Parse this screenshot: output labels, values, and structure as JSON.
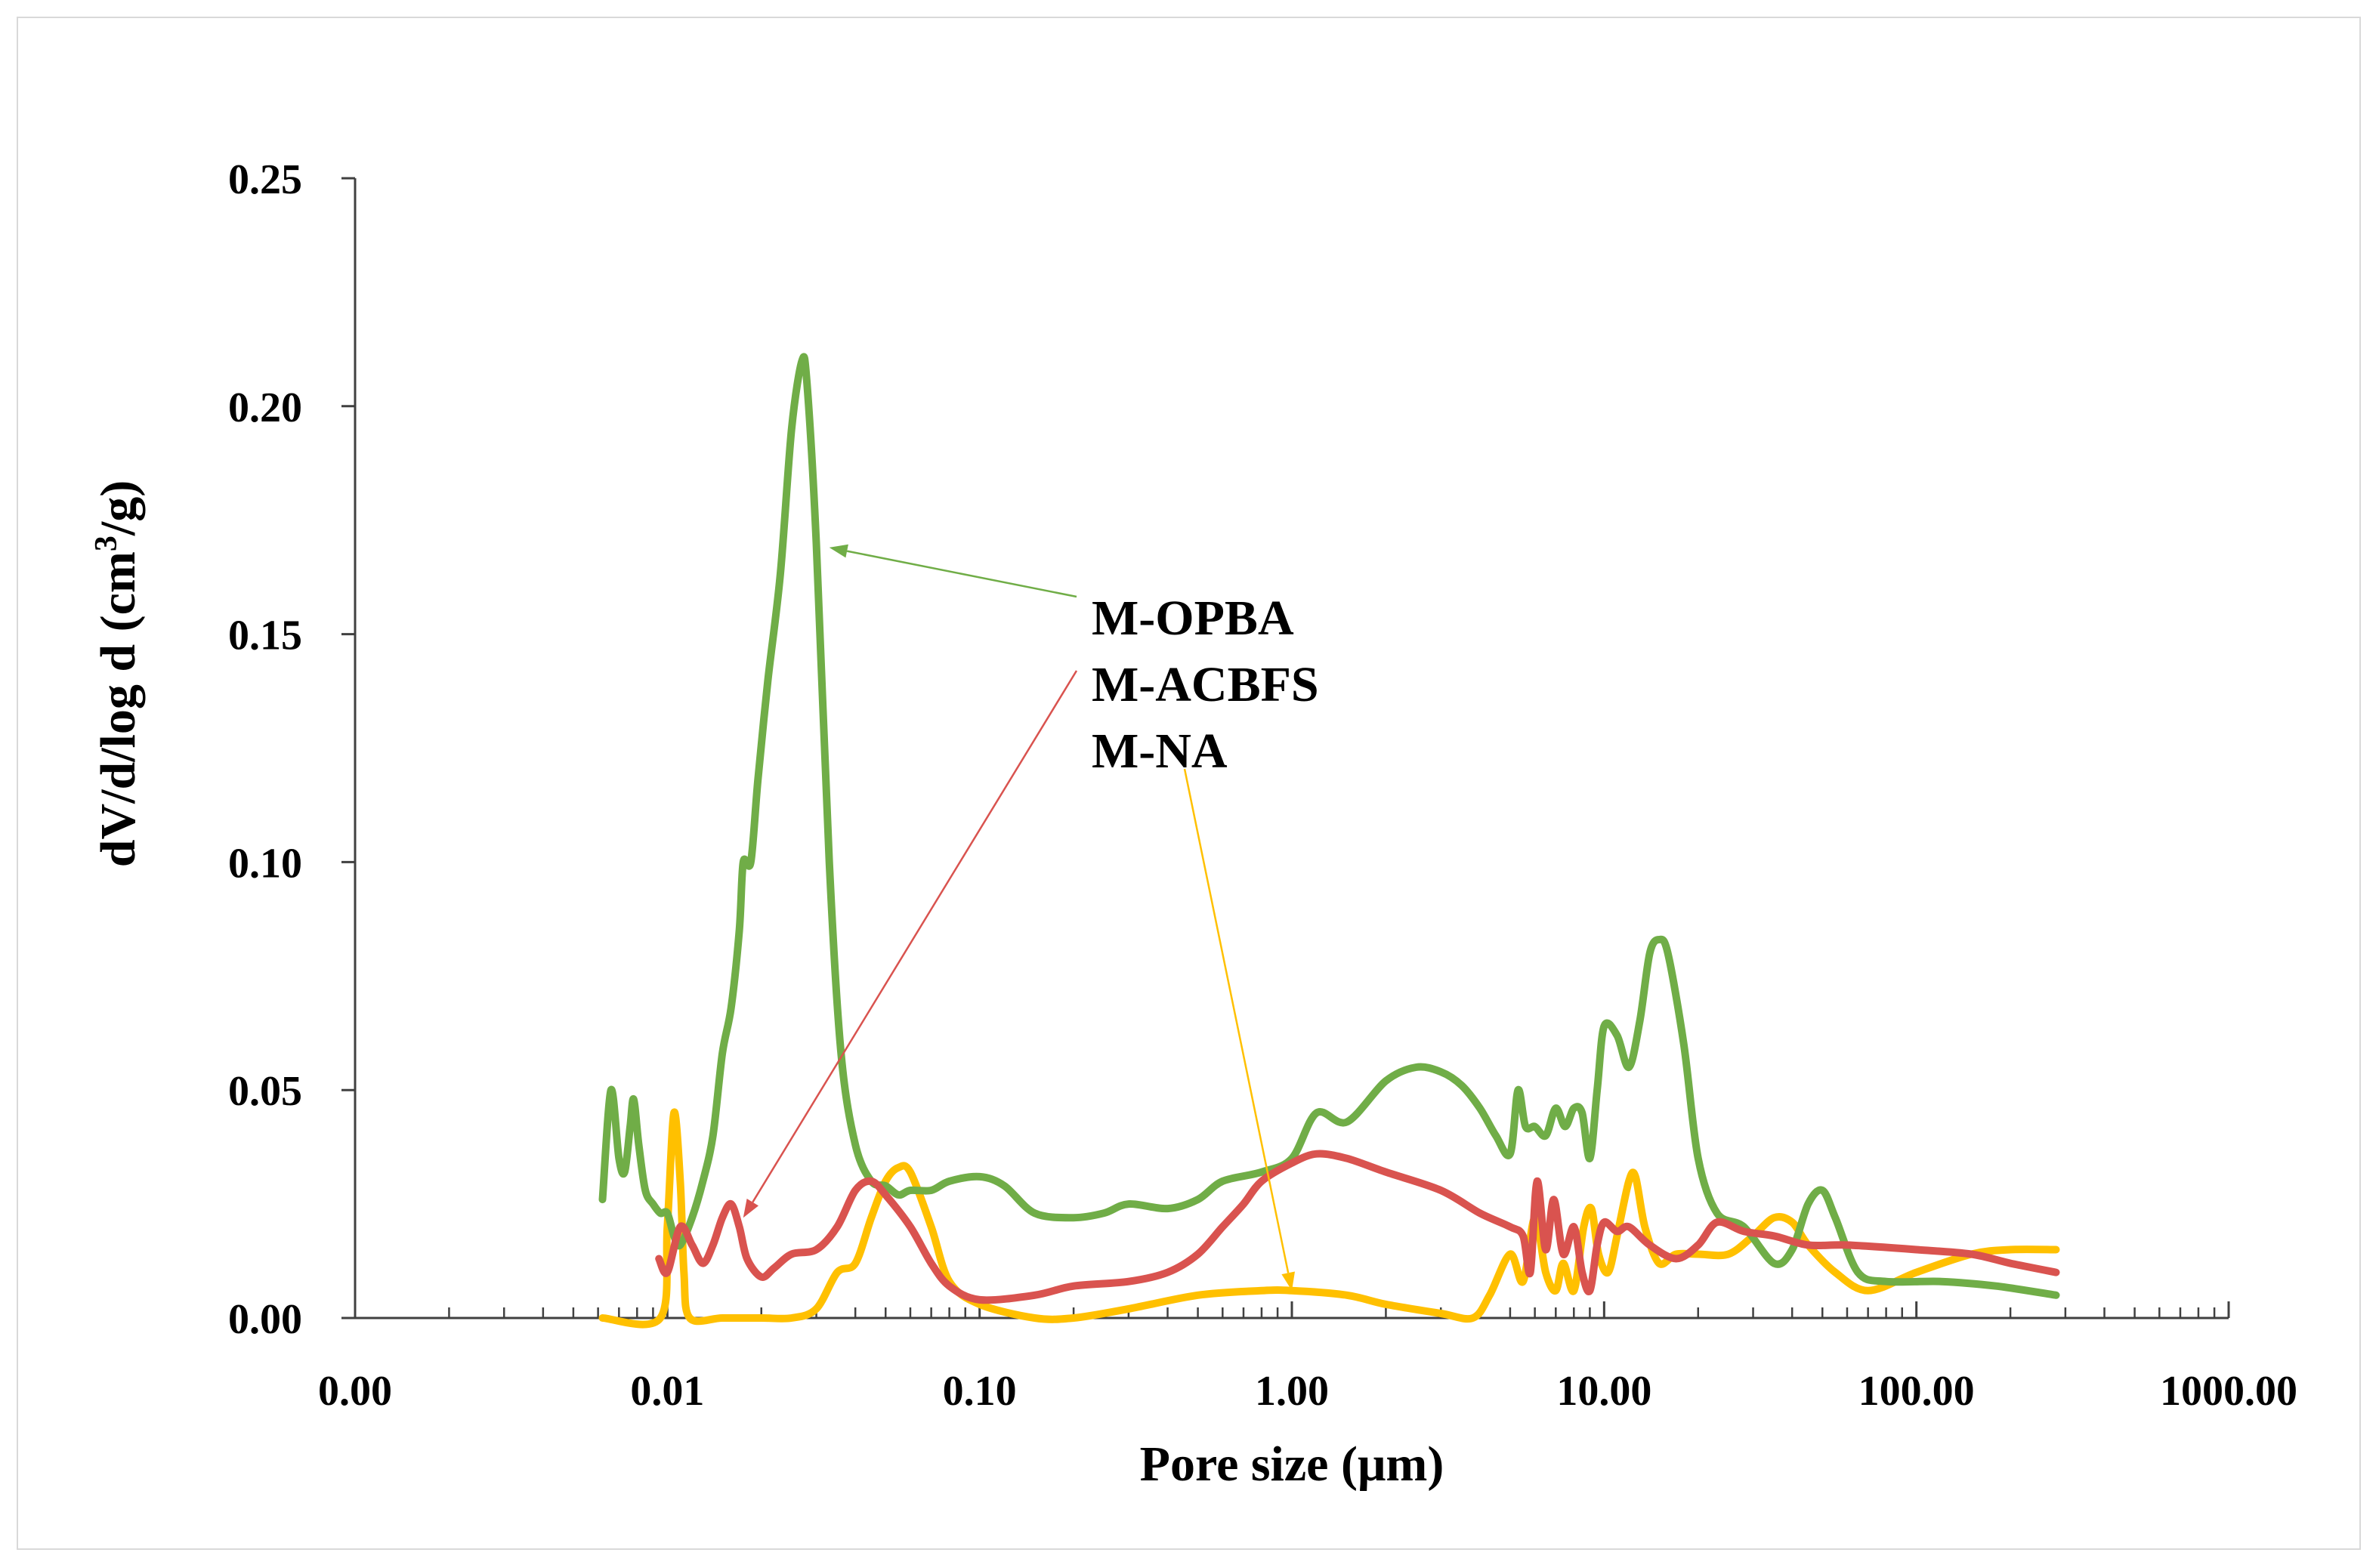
{
  "chart_data": {
    "type": "line",
    "title": "",
    "xlabel": "Pore size (μm)",
    "ylabel_main": "dV/d/log d (cm",
    "ylabel_sup": "3",
    "ylabel_end": "/g)",
    "x_scale": "log",
    "xlim": [
      0.001,
      1000
    ],
    "ylim": [
      0,
      0.25
    ],
    "x_tick_values": [
      0.001,
      0.01,
      0.1,
      1,
      10,
      100,
      1000
    ],
    "x_tick_labels": [
      "0.00",
      "0.01",
      "0.10",
      "1.00",
      "10.00",
      "100.00",
      "1000.00"
    ],
    "y_tick_values": [
      0,
      0.05,
      0.1,
      0.15,
      0.2,
      0.25
    ],
    "y_tick_labels": [
      "0.00",
      "0.05",
      "0.10",
      "0.15",
      "0.20",
      "0.25"
    ],
    "grid": false,
    "legend_position": "upper-middle with arrows",
    "series": [
      {
        "name": "M-OPBA",
        "color": "#70ad47",
        "arrow_to": [
          0.033,
          0.169
        ],
        "points": [
          [
            0.0062,
            0.026
          ],
          [
            0.0066,
            0.05
          ],
          [
            0.007,
            0.035
          ],
          [
            0.0073,
            0.032
          ],
          [
            0.0076,
            0.042
          ],
          [
            0.0078,
            0.048
          ],
          [
            0.0081,
            0.038
          ],
          [
            0.0085,
            0.028
          ],
          [
            0.009,
            0.025
          ],
          [
            0.0095,
            0.023
          ],
          [
            0.01,
            0.023
          ],
          [
            0.0105,
            0.018
          ],
          [
            0.011,
            0.016
          ],
          [
            0.012,
            0.022
          ],
          [
            0.013,
            0.03
          ],
          [
            0.014,
            0.04
          ],
          [
            0.015,
            0.058
          ],
          [
            0.016,
            0.068
          ],
          [
            0.017,
            0.085
          ],
          [
            0.0175,
            0.1
          ],
          [
            0.0185,
            0.1
          ],
          [
            0.0195,
            0.118
          ],
          [
            0.021,
            0.14
          ],
          [
            0.023,
            0.163
          ],
          [
            0.025,
            0.195
          ],
          [
            0.027,
            0.21
          ],
          [
            0.028,
            0.205
          ],
          [
            0.03,
            0.17
          ],
          [
            0.033,
            0.1
          ],
          [
            0.036,
            0.058
          ],
          [
            0.04,
            0.038
          ],
          [
            0.045,
            0.03
          ],
          [
            0.05,
            0.029
          ],
          [
            0.055,
            0.027
          ],
          [
            0.06,
            0.028
          ],
          [
            0.07,
            0.028
          ],
          [
            0.08,
            0.03
          ],
          [
            0.1,
            0.031
          ],
          [
            0.12,
            0.029
          ],
          [
            0.15,
            0.023
          ],
          [
            0.2,
            0.022
          ],
          [
            0.25,
            0.023
          ],
          [
            0.3,
            0.025
          ],
          [
            0.4,
            0.024
          ],
          [
            0.5,
            0.026
          ],
          [
            0.6,
            0.03
          ],
          [
            0.8,
            0.032
          ],
          [
            1.0,
            0.035
          ],
          [
            1.2,
            0.045
          ],
          [
            1.5,
            0.043
          ],
          [
            2.0,
            0.052
          ],
          [
            2.5,
            0.055
          ],
          [
            3.0,
            0.054
          ],
          [
            3.5,
            0.051
          ],
          [
            4.0,
            0.046
          ],
          [
            4.5,
            0.04
          ],
          [
            5.0,
            0.036
          ],
          [
            5.3,
            0.05
          ],
          [
            5.6,
            0.042
          ],
          [
            6.0,
            0.042
          ],
          [
            6.5,
            0.04
          ],
          [
            7.0,
            0.046
          ],
          [
            7.5,
            0.042
          ],
          [
            8.0,
            0.046
          ],
          [
            8.5,
            0.045
          ],
          [
            9.0,
            0.035
          ],
          [
            9.5,
            0.05
          ],
          [
            10,
            0.064
          ],
          [
            11,
            0.062
          ],
          [
            12,
            0.055
          ],
          [
            13,
            0.065
          ],
          [
            14,
            0.08
          ],
          [
            15,
            0.083
          ],
          [
            16,
            0.08
          ],
          [
            18,
            0.06
          ],
          [
            20,
            0.035
          ],
          [
            23,
            0.023
          ],
          [
            28,
            0.02
          ],
          [
            35,
            0.012
          ],
          [
            40,
            0.015
          ],
          [
            45,
            0.025
          ],
          [
            50,
            0.028
          ],
          [
            55,
            0.022
          ],
          [
            65,
            0.01
          ],
          [
            80,
            0.008
          ],
          [
            120,
            0.008
          ],
          [
            180,
            0.007
          ],
          [
            280,
            0.005
          ]
        ]
      },
      {
        "name": "M-ACBFS",
        "color": "#d9534f",
        "arrow_to": [
          0.0175,
          0.022
        ],
        "points": [
          [
            0.0094,
            0.013
          ],
          [
            0.01,
            0.01
          ],
          [
            0.011,
            0.02
          ],
          [
            0.012,
            0.016
          ],
          [
            0.013,
            0.012
          ],
          [
            0.014,
            0.016
          ],
          [
            0.015,
            0.022
          ],
          [
            0.016,
            0.025
          ],
          [
            0.017,
            0.02
          ],
          [
            0.018,
            0.013
          ],
          [
            0.02,
            0.009
          ],
          [
            0.022,
            0.011
          ],
          [
            0.025,
            0.014
          ],
          [
            0.03,
            0.015
          ],
          [
            0.035,
            0.02
          ],
          [
            0.04,
            0.028
          ],
          [
            0.045,
            0.03
          ],
          [
            0.05,
            0.027
          ],
          [
            0.06,
            0.02
          ],
          [
            0.07,
            0.012
          ],
          [
            0.08,
            0.007
          ],
          [
            0.1,
            0.004
          ],
          [
            0.15,
            0.005
          ],
          [
            0.2,
            0.007
          ],
          [
            0.3,
            0.008
          ],
          [
            0.4,
            0.01
          ],
          [
            0.5,
            0.014
          ],
          [
            0.6,
            0.02
          ],
          [
            0.7,
            0.025
          ],
          [
            0.8,
            0.03
          ],
          [
            1.0,
            0.034
          ],
          [
            1.2,
            0.036
          ],
          [
            1.5,
            0.035
          ],
          [
            2.0,
            0.032
          ],
          [
            3.0,
            0.028
          ],
          [
            4.0,
            0.023
          ],
          [
            5.0,
            0.02
          ],
          [
            5.5,
            0.018
          ],
          [
            5.8,
            0.01
          ],
          [
            6.1,
            0.03
          ],
          [
            6.5,
            0.015
          ],
          [
            6.9,
            0.026
          ],
          [
            7.4,
            0.014
          ],
          [
            8.0,
            0.02
          ],
          [
            8.5,
            0.01
          ],
          [
            9.0,
            0.006
          ],
          [
            9.5,
            0.016
          ],
          [
            10,
            0.021
          ],
          [
            11,
            0.019
          ],
          [
            12,
            0.02
          ],
          [
            14,
            0.016
          ],
          [
            17,
            0.013
          ],
          [
            20,
            0.016
          ],
          [
            23,
            0.021
          ],
          [
            28,
            0.019
          ],
          [
            35,
            0.018
          ],
          [
            45,
            0.016
          ],
          [
            60,
            0.016
          ],
          [
            100,
            0.015
          ],
          [
            150,
            0.014
          ],
          [
            200,
            0.012
          ],
          [
            280,
            0.01
          ]
        ]
      },
      {
        "name": "M-NA",
        "color": "#ffc000",
        "arrow_to": [
          1.0,
          0.006
        ],
        "points": [
          [
            0.0062,
            0.0
          ],
          [
            0.0095,
            0.0
          ],
          [
            0.01,
            0.02
          ],
          [
            0.0105,
            0.045
          ],
          [
            0.011,
            0.03
          ],
          [
            0.0113,
            0.01
          ],
          [
            0.0118,
            0.0
          ],
          [
            0.015,
            0.0
          ],
          [
            0.02,
            0.0
          ],
          [
            0.025,
            0.0
          ],
          [
            0.03,
            0.002
          ],
          [
            0.035,
            0.01
          ],
          [
            0.04,
            0.012
          ],
          [
            0.045,
            0.022
          ],
          [
            0.05,
            0.03
          ],
          [
            0.055,
            0.033
          ],
          [
            0.06,
            0.032
          ],
          [
            0.07,
            0.02
          ],
          [
            0.08,
            0.008
          ],
          [
            0.1,
            0.003
          ],
          [
            0.15,
            0.0
          ],
          [
            0.2,
            0.0
          ],
          [
            0.3,
            0.002
          ],
          [
            0.5,
            0.005
          ],
          [
            0.8,
            0.006
          ],
          [
            1.0,
            0.006
          ],
          [
            1.5,
            0.005
          ],
          [
            2.0,
            0.003
          ],
          [
            3.0,
            0.001
          ],
          [
            3.8,
            0.0
          ],
          [
            4.3,
            0.005
          ],
          [
            5.0,
            0.014
          ],
          [
            5.5,
            0.008
          ],
          [
            6.0,
            0.022
          ],
          [
            6.5,
            0.01
          ],
          [
            7.0,
            0.006
          ],
          [
            7.4,
            0.012
          ],
          [
            8.0,
            0.006
          ],
          [
            8.6,
            0.02
          ],
          [
            9.1,
            0.024
          ],
          [
            9.6,
            0.014
          ],
          [
            10.3,
            0.01
          ],
          [
            11,
            0.018
          ],
          [
            12,
            0.03
          ],
          [
            12.6,
            0.031
          ],
          [
            13.5,
            0.02
          ],
          [
            15,
            0.012
          ],
          [
            17,
            0.014
          ],
          [
            20,
            0.014
          ],
          [
            25,
            0.014
          ],
          [
            30,
            0.018
          ],
          [
            35,
            0.022
          ],
          [
            40,
            0.021
          ],
          [
            45,
            0.016
          ],
          [
            55,
            0.01
          ],
          [
            70,
            0.006
          ],
          [
            100,
            0.01
          ],
          [
            150,
            0.014
          ],
          [
            200,
            0.015
          ],
          [
            280,
            0.015
          ]
        ]
      }
    ]
  }
}
